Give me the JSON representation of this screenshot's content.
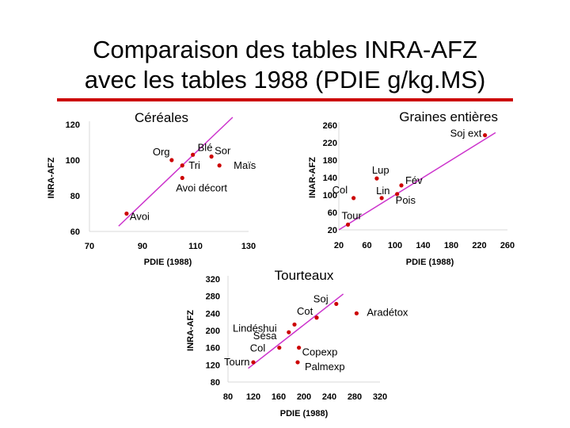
{
  "slide": {
    "title_line1": "Comparaison des tables INRA-AFZ",
    "title_line2": "avec les tables 1988 (PDIE g/kg.MS)",
    "accent_color": "#cc0000"
  },
  "chart_data": [
    {
      "type": "scatter",
      "title": "Céréales",
      "xlabel": "PDIE (1988)",
      "ylabel": "INRA-AFZ",
      "xlim": [
        70,
        130
      ],
      "ylim": [
        60,
        120
      ],
      "xticks": [
        70,
        90,
        110,
        130
      ],
      "yticks": [
        60,
        80,
        100,
        120
      ],
      "point_color": "#cc0000",
      "line_color": "#cc33cc",
      "trend_line": {
        "x": [
          81,
          124
        ],
        "y": [
          63,
          124
        ]
      },
      "points": [
        {
          "label": "Org",
          "x": 101,
          "y": 100
        },
        {
          "label": "Blé",
          "x": 109,
          "y": 103
        },
        {
          "label": "Sor",
          "x": 116,
          "y": 102
        },
        {
          "label": "Tri",
          "x": 105,
          "y": 97
        },
        {
          "label": "Maïs",
          "x": 119,
          "y": 97
        },
        {
          "label": "Avoi décort",
          "x": 105,
          "y": 90
        },
        {
          "label": "Avoi",
          "x": 84,
          "y": 70
        }
      ]
    },
    {
      "type": "scatter",
      "title": "Graines entières",
      "xlabel": "PDIE (1988)",
      "ylabel": "INAR-AFZ",
      "xlim": [
        20,
        260
      ],
      "ylim": [
        20,
        260
      ],
      "xticks": [
        20,
        60,
        100,
        140,
        180,
        220,
        260
      ],
      "xtick_labels": [
        "20",
        "60",
        "100",
        "140",
        "180",
        "220",
        "260"
      ],
      "yticks": [
        20,
        60,
        100,
        140,
        180,
        220,
        260
      ],
      "point_color": "#cc0000",
      "line_color": "#cc33cc",
      "trend_line": {
        "x": [
          20,
          243
        ],
        "y": [
          20,
          243
        ]
      },
      "points": [
        {
          "label": "Soj ext",
          "x": 228,
          "y": 237
        },
        {
          "label": "Lup",
          "x": 74,
          "y": 138
        },
        {
          "label": "Fév",
          "x": 109,
          "y": 122
        },
        {
          "label": "Col",
          "x": 41,
          "y": 93
        },
        {
          "label": "Lin",
          "x": 81,
          "y": 93
        },
        {
          "label": "Pois",
          "x": 103,
          "y": 102
        },
        {
          "label": "Tour",
          "x": 33,
          "y": 32
        }
      ]
    },
    {
      "type": "scatter",
      "title": "Tourteaux",
      "xlabel": "PDIE (1988)",
      "ylabel": "INRA-AFZ",
      "xlim": [
        80,
        320
      ],
      "ylim": [
        80,
        320
      ],
      "xticks": [
        80,
        120,
        160,
        200,
        240,
        280,
        320
      ],
      "yticks": [
        80,
        120,
        160,
        200,
        240,
        280,
        320
      ],
      "point_color": "#cc0000",
      "line_color": "#cc33cc",
      "trend_line": {
        "x": [
          112,
          262
        ],
        "y": [
          112,
          285
        ]
      },
      "points": [
        {
          "label": "Soj",
          "x": 251,
          "y": 262
        },
        {
          "label": "Aradétox",
          "x": 283,
          "y": 240
        },
        {
          "label": "Cot",
          "x": 220,
          "y": 230
        },
        {
          "label": "Lindéshui",
          "x": 185,
          "y": 214
        },
        {
          "label": "Sésa",
          "x": 176,
          "y": 196
        },
        {
          "label": "Col",
          "x": 161,
          "y": 160
        },
        {
          "label": "Copexp",
          "x": 192,
          "y": 160
        },
        {
          "label": "Tourn",
          "x": 120,
          "y": 126
        },
        {
          "label": "Palmexp",
          "x": 190,
          "y": 126
        }
      ]
    }
  ]
}
